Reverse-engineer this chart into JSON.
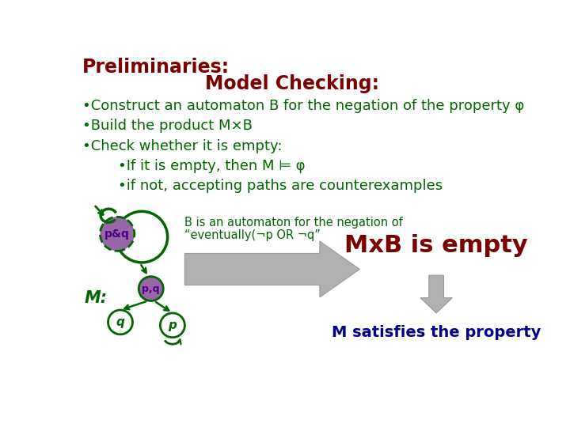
{
  "bg_color": "#ffffff",
  "title_prelim": "Preliminaries:",
  "title_model": "Model Checking:",
  "bullet1": "•Construct an automaton B for the negation of the property φ",
  "bullet2": "•Build the product M×B",
  "bullet3": "•Check whether it is empty:",
  "bullet4": "    •If it is empty, then M ⊨ φ",
  "bullet5": "    •if not, accepting paths are counterexamples",
  "b_label_line1": "B is an automaton for the negation of",
  "b_label_line2": "“eventually(¬p OR ¬q”",
  "mxb_label": "MxB is empty",
  "satisfies_label": "M satisfies the property",
  "m_label": "M:",
  "node_color": "#006600",
  "pq_label": "p&q",
  "pq_fill": "#9966aa",
  "p_label": "p",
  "q_label": "q",
  "pq_node_label": "p,q",
  "arrow_fill": "#b0b0b0",
  "arrow_edge": "#999999",
  "down_arrow_color": "#999999",
  "prelim_color": "#7b0000",
  "model_color": "#7b0000",
  "bullet_color": "#006600",
  "mxb_color": "#7b0000",
  "satisfies_color": "#00008b",
  "m_color": "#006600",
  "b_text_color": "#006600"
}
